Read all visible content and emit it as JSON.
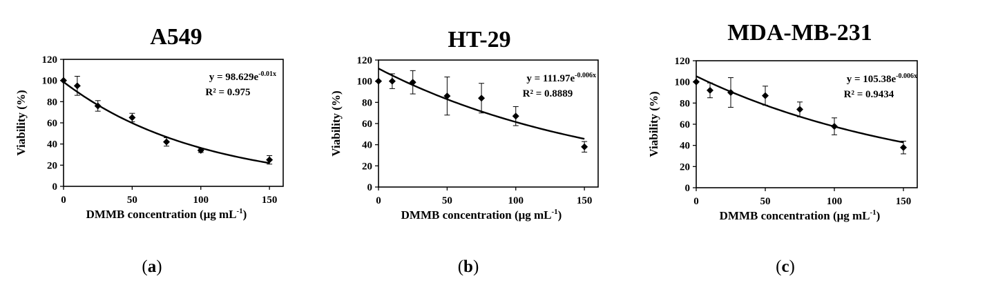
{
  "chart_data": [
    {
      "type": "scatter",
      "panel_label": "a",
      "title": "A549",
      "xlabel": "DMMB concentration (μg mL",
      "xlabel_sup": "-1",
      "xlabel_end": ")",
      "ylabel": "Viability (%)",
      "xlim": [
        0,
        160
      ],
      "ylim": [
        0,
        120
      ],
      "xticks": [
        0,
        50,
        100,
        150
      ],
      "yticks": [
        0,
        20,
        40,
        60,
        80,
        100,
        120
      ],
      "equation": "y = 98.629e",
      "equation_exp": "-0.01x",
      "r2": "R² = 0.975",
      "fit": {
        "a": 98.629,
        "b": -0.01
      },
      "points": [
        {
          "x": 0,
          "y": 100,
          "err": 0
        },
        {
          "x": 10,
          "y": 95,
          "err": 9
        },
        {
          "x": 25,
          "y": 76,
          "err": 5
        },
        {
          "x": 50,
          "y": 65,
          "err": 4
        },
        {
          "x": 75,
          "y": 42,
          "err": 4
        },
        {
          "x": 100,
          "y": 34,
          "err": 2
        },
        {
          "x": 150,
          "y": 25,
          "err": 4
        }
      ]
    },
    {
      "type": "scatter",
      "panel_label": "b",
      "title": "HT-29",
      "xlabel": "DMMB concentration (μg mL",
      "xlabel_sup": "-1",
      "xlabel_end": ")",
      "ylabel": "Viability (%)",
      "xlim": [
        0,
        160
      ],
      "ylim": [
        0,
        120
      ],
      "xticks": [
        0,
        50,
        100,
        150
      ],
      "yticks": [
        0,
        20,
        40,
        60,
        80,
        100,
        120
      ],
      "equation": "y = 111.97e",
      "equation_exp": "-0.006x",
      "r2": "R² = 0.8889",
      "fit": {
        "a": 111.97,
        "b": -0.006
      },
      "points": [
        {
          "x": 0,
          "y": 100,
          "err": 0
        },
        {
          "x": 10,
          "y": 100,
          "err": 7
        },
        {
          "x": 25,
          "y": 99,
          "err": 11
        },
        {
          "x": 50,
          "y": 86,
          "err": 18
        },
        {
          "x": 75,
          "y": 84,
          "err": 14
        },
        {
          "x": 100,
          "y": 67,
          "err": 9
        },
        {
          "x": 150,
          "y": 38,
          "err": 5
        }
      ]
    },
    {
      "type": "scatter",
      "panel_label": "c",
      "title": "MDA-MB-231",
      "xlabel": "DMMB concentration (μg mL",
      "xlabel_sup": "-1",
      "xlabel_end": ")",
      "ylabel": "Viability (%)",
      "xlim": [
        0,
        160
      ],
      "ylim": [
        0,
        120
      ],
      "xticks": [
        0,
        50,
        100,
        150
      ],
      "yticks": [
        0,
        20,
        40,
        60,
        80,
        100,
        120
      ],
      "equation": "y = 105.38e",
      "equation_exp": "-0.006x",
      "r2": "R² = 0.9434",
      "fit": {
        "a": 105.38,
        "b": -0.006
      },
      "points": [
        {
          "x": 0,
          "y": 100,
          "err": 0
        },
        {
          "x": 10,
          "y": 92,
          "err": 7
        },
        {
          "x": 25,
          "y": 90,
          "err": 14
        },
        {
          "x": 50,
          "y": 87,
          "err": 9
        },
        {
          "x": 75,
          "y": 74,
          "err": 7
        },
        {
          "x": 100,
          "y": 58,
          "err": 8
        },
        {
          "x": 150,
          "y": 38,
          "err": 6
        }
      ]
    }
  ],
  "colors": {
    "ink": "#000000",
    "background": "#ffffff"
  }
}
